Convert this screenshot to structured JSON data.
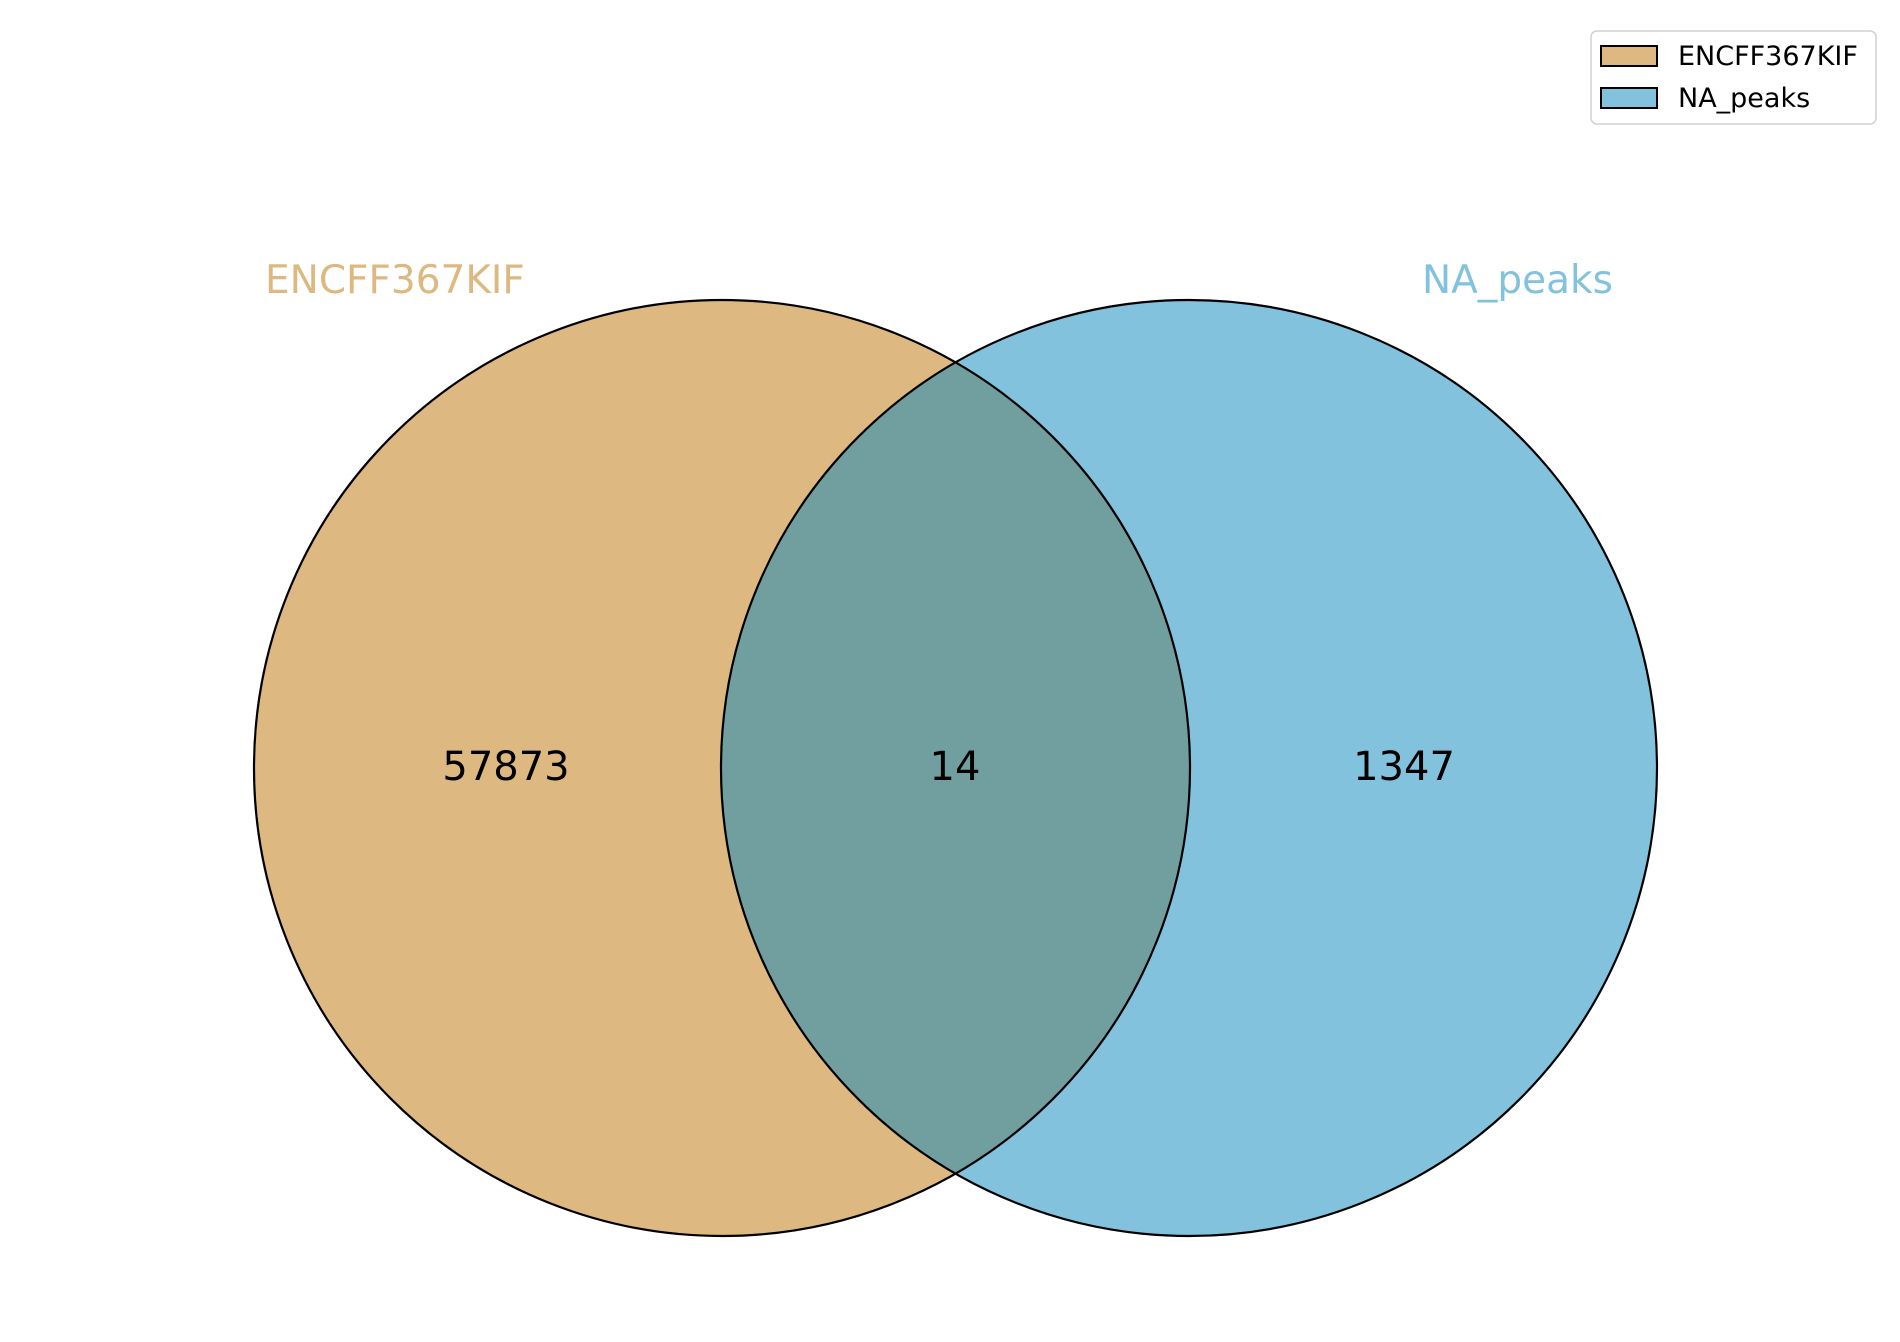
{
  "sets": [
    {
      "name": "ENCFF367KIF",
      "color": "#ddb881"
    },
    {
      "name": "NA_peaks",
      "color": "#82c2dd"
    }
  ],
  "overlap_color": "#719f9f",
  "counts": {
    "left_only": "57873",
    "intersection": "14",
    "right_only": "1347"
  },
  "legend": {
    "placement": "top-right",
    "entries": [
      {
        "label": "ENCFF367KIF",
        "color": "#ddb881"
      },
      {
        "label": "NA_peaks",
        "color": "#82c2dd"
      }
    ]
  }
}
